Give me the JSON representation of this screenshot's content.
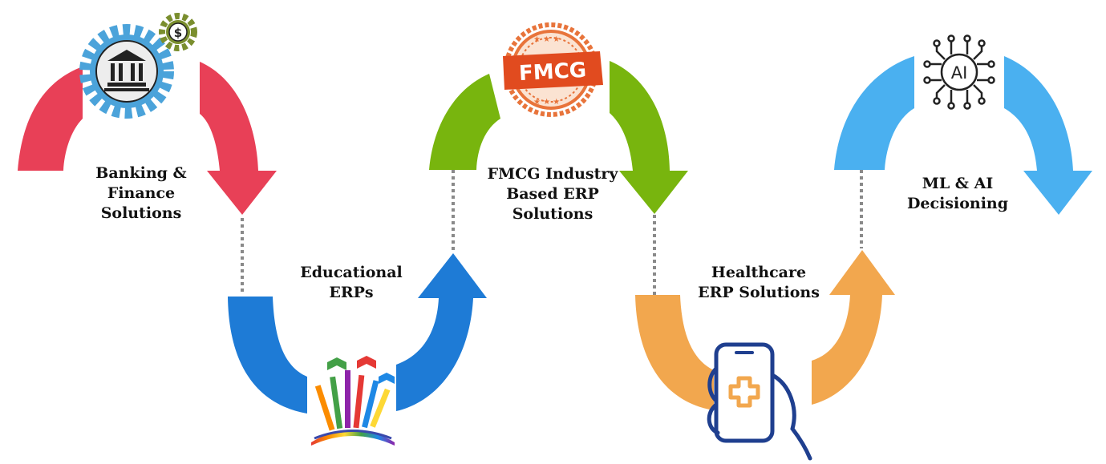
{
  "stages": [
    {
      "id": "banking",
      "title_lines": [
        "Banking &",
        "Finance",
        "Solutions"
      ],
      "color": "#E84057",
      "icon": "bank-gear-icon"
    },
    {
      "id": "education",
      "title_lines": [
        "Educational",
        "ERPs"
      ],
      "color": "#1E7BD6",
      "icon": "raised-hands-books-icon"
    },
    {
      "id": "fmcg",
      "title_lines": [
        "FMCG Industry",
        "Based ERP",
        "Solutions"
      ],
      "color": "#78B50E",
      "icon": "fmcg-stamp-icon"
    },
    {
      "id": "healthcare",
      "title_lines": [
        "Healthcare",
        "ERP Solutions"
      ],
      "color": "#F2A74E",
      "icon": "medical-phone-icon"
    },
    {
      "id": "ai",
      "title_lines": [
        "ML & AI",
        "Decisioning"
      ],
      "color": "#4AB0F0",
      "icon": "ai-chip-icon"
    }
  ],
  "icons": {
    "fmcg_stamp_text": "FMCG",
    "ai_chip_text": "AI",
    "dollar_symbol": "$"
  },
  "connector_color": "#8A8A8A"
}
